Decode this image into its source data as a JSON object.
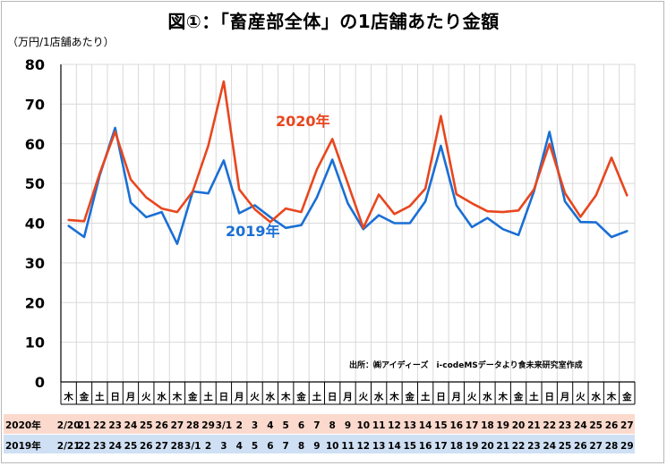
{
  "title": "図①：「畜産部全体」の1店舗あたり金額",
  "unit": "（万円/1店舗あたり）",
  "source": "出所：㈱アイディーズ　i-codeMSデータより食未来研究室作成",
  "chart_data": {
    "type": "line",
    "ylim": [
      0,
      80
    ],
    "yticks": [
      0,
      10,
      20,
      30,
      40,
      50,
      60,
      70,
      80
    ],
    "grid": true,
    "weekdays": [
      "木",
      "金",
      "土",
      "日",
      "月",
      "火",
      "水",
      "木",
      "金",
      "土",
      "日",
      "月",
      "火",
      "水",
      "木",
      "金",
      "土",
      "日",
      "月",
      "火",
      "水",
      "木",
      "金",
      "土",
      "日",
      "月",
      "火",
      "水",
      "木",
      "金",
      "土",
      "日",
      "月",
      "火",
      "水",
      "木",
      "金"
    ],
    "row_labels": {
      "2020": "2020年",
      "2019": "2019年"
    },
    "dates_2020": [
      "2/20",
      "21",
      "22",
      "23",
      "24",
      "25",
      "26",
      "27",
      "28",
      "29",
      "3/1",
      "2",
      "3",
      "4",
      "5",
      "6",
      "7",
      "8",
      "9",
      "10",
      "11",
      "12",
      "13",
      "14",
      "15",
      "16",
      "17",
      "18",
      "19",
      "20",
      "21",
      "22",
      "23",
      "24",
      "25",
      "26",
      "27"
    ],
    "dates_2019": [
      "2/21",
      "22",
      "23",
      "24",
      "25",
      "26",
      "27",
      "28",
      "3/1",
      "2",
      "3",
      "4",
      "5",
      "6",
      "7",
      "8",
      "9",
      "10",
      "11",
      "12",
      "13",
      "14",
      "15",
      "16",
      "17",
      "18",
      "19",
      "20",
      "21",
      "22",
      "23",
      "24",
      "25",
      "26",
      "27",
      "28",
      "29"
    ],
    "series": [
      {
        "name": "2020年",
        "color": "#e8461e",
        "values": [
          40.8,
          40.5,
          52.5,
          63.0,
          51.0,
          46.5,
          43.7,
          42.8,
          48.0,
          59.5,
          75.7,
          48.5,
          43.5,
          40.3,
          43.7,
          42.8,
          53.5,
          61.2,
          50.0,
          38.8,
          47.2,
          42.3,
          44.3,
          48.7,
          67.0,
          47.3,
          45.0,
          43.0,
          42.8,
          43.2,
          48.5,
          60.0,
          47.6,
          41.6,
          47.0,
          56.5,
          47.0
        ]
      },
      {
        "name": "2019年",
        "color": "#1a6fd4",
        "values": [
          39.3,
          36.5,
          52.0,
          64.0,
          45.2,
          41.5,
          42.8,
          34.8,
          48.0,
          47.5,
          55.8,
          42.5,
          44.5,
          41.5,
          38.8,
          39.5,
          46.5,
          56.0,
          45.0,
          38.5,
          42.0,
          40.0,
          40.0,
          45.5,
          59.5,
          44.5,
          39.0,
          41.3,
          38.5,
          37.0,
          48.0,
          63.0,
          45.5,
          40.3,
          40.2,
          36.5,
          38.0
        ]
      }
    ]
  }
}
